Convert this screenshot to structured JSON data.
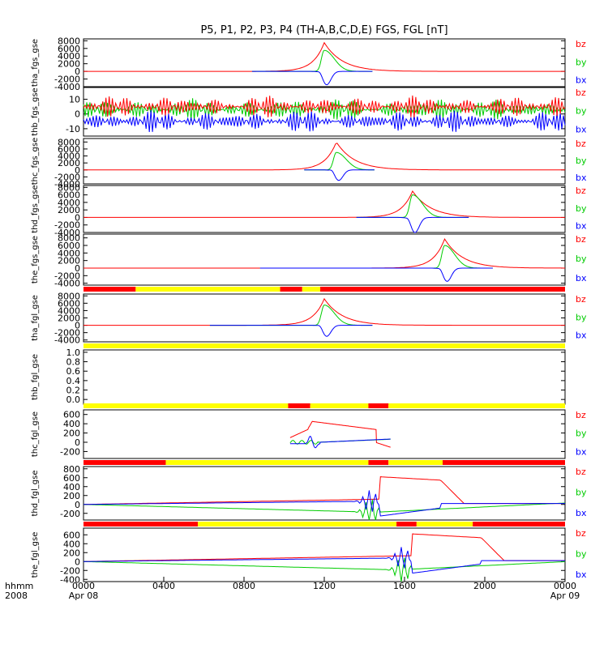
{
  "title": "P5, P1, P2, P3, P4 (TH-A,B,C,D,E) FGS, FGL [nT]",
  "colors": {
    "bx": "#0000ff",
    "by": "#00cc00",
    "bz": "#ff0000",
    "bar_red": "#ff0000",
    "bar_yellow": "#ffff00",
    "axis": "#000000"
  },
  "time_axis": {
    "label_top": "hhmm",
    "label_bottom": "2008",
    "ticks": [
      {
        "time": "0000",
        "date": "Apr 08"
      },
      {
        "time": "0400",
        "date": ""
      },
      {
        "time": "0800",
        "date": ""
      },
      {
        "time": "1200",
        "date": ""
      },
      {
        "time": "1600",
        "date": ""
      },
      {
        "time": "2000",
        "date": ""
      },
      {
        "time": "0000",
        "date": "Apr 09"
      }
    ]
  },
  "chart_data": [
    {
      "type": "line",
      "ylabel": "tha_fgs_gse",
      "ylim": [
        -4000,
        8500
      ],
      "yticks": [
        "8000",
        "6000",
        "4000",
        "2000",
        "0",
        "-2000",
        "-4000"
      ],
      "legend": [
        "bz",
        "by",
        "bx"
      ],
      "data_span_hours": [
        8.4,
        14.4
      ],
      "event": {
        "center_hour": 12.0,
        "bz_peak": 7500,
        "by_peak": 5500,
        "bx_min": -3500
      }
    },
    {
      "type": "line",
      "ylabel": "thb_fgs_gse",
      "ylim": [
        -15,
        18
      ],
      "yticks": [
        "10",
        "0",
        "-10"
      ],
      "legend": [
        "bz",
        "by",
        "bx"
      ],
      "data_span_hours": [
        0,
        24
      ],
      "noise": {
        "bz_mean": 5,
        "by_mean": 3,
        "bx_mean": -5,
        "amplitude": 7
      }
    },
    {
      "type": "line",
      "ylabel": "thc_fgs_gse",
      "ylim": [
        -4000,
        9000
      ],
      "yticks": [
        "8000",
        "6000",
        "4000",
        "2000",
        "0",
        "-2000",
        "-4000"
      ],
      "legend": [
        "bz",
        "by",
        "bx"
      ],
      "data_span_hours": [
        11.0,
        14.5
      ],
      "event": {
        "center_hour": 12.6,
        "bz_peak": 8000,
        "by_peak": 5000,
        "bx_min": -3000
      }
    },
    {
      "type": "line",
      "ylabel": "thd_fgs_gse",
      "ylim": [
        -4000,
        8500
      ],
      "yticks": [
        "8000",
        "6000",
        "4000",
        "2000",
        "0",
        "-2000",
        "-4000"
      ],
      "legend": [
        "bz",
        "by",
        "bx"
      ],
      "data_span_hours": [
        13.6,
        19.2
      ],
      "event": {
        "center_hour": 16.4,
        "bz_peak": 7000,
        "by_peak": 6000,
        "bx_min": -4000
      }
    },
    {
      "type": "line",
      "ylabel": "the_fgs_gse",
      "ylim": [
        -4500,
        9000
      ],
      "yticks": [
        "8000",
        "6000",
        "4000",
        "2000",
        "0",
        "-2000",
        "-4000"
      ],
      "legend": [
        "bz",
        "by",
        "bx"
      ],
      "data_span_hours": [
        8.8,
        20.4
      ],
      "event": {
        "center_hour": 18.0,
        "bz_peak": 7700,
        "by_peak": 6000,
        "bx_min": -3500
      }
    },
    {
      "type": "line",
      "ylabel": "tha_fgl_gse",
      "ylim": [
        -4500,
        8500
      ],
      "yticks": [
        "8000",
        "6000",
        "4000",
        "2000",
        "0",
        "-2000",
        "-4000"
      ],
      "legend": [
        "bz",
        "by",
        "bx"
      ],
      "data_span_hours": [
        6.3,
        14.4
      ],
      "event": {
        "center_hour": 12.0,
        "bz_peak": 7200,
        "by_peak": 5500,
        "bx_min": -3000
      }
    },
    {
      "type": "line",
      "ylabel": "thb_fgl_gse",
      "ylim": [
        -0.1,
        1.05
      ],
      "yticks": [
        "1.0",
        "0.8",
        "0.6",
        "0.4",
        "0.2",
        "0.0"
      ],
      "legend": []
    },
    {
      "type": "line",
      "ylabel": "thc_fgl_gse",
      "ylim": [
        -350,
        700
      ],
      "yticks": [
        "600",
        "400",
        "200",
        "0",
        "-200"
      ],
      "legend": [
        "bz",
        "by",
        "bx"
      ],
      "data_span_hours": [
        10.3,
        15.3
      ],
      "bz_plateau": 450
    },
    {
      "type": "line",
      "ylabel": "thd_fgl_gse",
      "ylim": [
        -350,
        850
      ],
      "yticks": [
        "800",
        "600",
        "400",
        "200",
        "0",
        "-200"
      ],
      "legend": [
        "bz",
        "by",
        "bx"
      ],
      "data_span_hours": [
        0,
        24
      ],
      "bz_peak": 620
    },
    {
      "type": "line",
      "ylabel": "the_fgl_gse",
      "ylim": [
        -450,
        750
      ],
      "yticks": [
        "600",
        "400",
        "200",
        "0",
        "-200",
        "-400"
      ],
      "legend": [
        "bz",
        "by",
        "bx"
      ],
      "data_span_hours": [
        0,
        24
      ],
      "bz_peak": 620
    }
  ],
  "mode_bars": [
    {
      "after_panel": 4,
      "segments": [
        [
          "red",
          0,
          2.6
        ],
        [
          "yellow",
          2.6,
          9.8
        ],
        [
          "red",
          9.8,
          10.9
        ],
        [
          "yellow",
          10.9,
          11.8
        ],
        [
          "red",
          11.8,
          24
        ]
      ]
    },
    {
      "after_panel": 5,
      "segments": [
        [
          "yellow",
          0,
          24
        ]
      ]
    },
    {
      "after_panel": 6,
      "segments": [
        [
          "yellow",
          0,
          10.2
        ],
        [
          "red",
          10.2,
          11.3
        ],
        [
          "yellow",
          11.3,
          14.2
        ],
        [
          "red",
          14.2,
          15.2
        ],
        [
          "yellow",
          15.2,
          24
        ]
      ]
    },
    {
      "after_panel": 7,
      "segments": [
        [
          "red",
          0,
          4.1
        ],
        [
          "yellow",
          4.1,
          14.2
        ],
        [
          "red",
          14.2,
          15.2
        ],
        [
          "yellow",
          15.2,
          17.9
        ],
        [
          "red",
          17.9,
          24
        ]
      ]
    },
    {
      "after_panel": 8,
      "segments": [
        [
          "red",
          0,
          5.7
        ],
        [
          "yellow",
          5.7,
          15.6
        ],
        [
          "red",
          15.6,
          16.6
        ],
        [
          "yellow",
          16.6,
          19.4
        ],
        [
          "red",
          19.4,
          24
        ]
      ]
    }
  ]
}
